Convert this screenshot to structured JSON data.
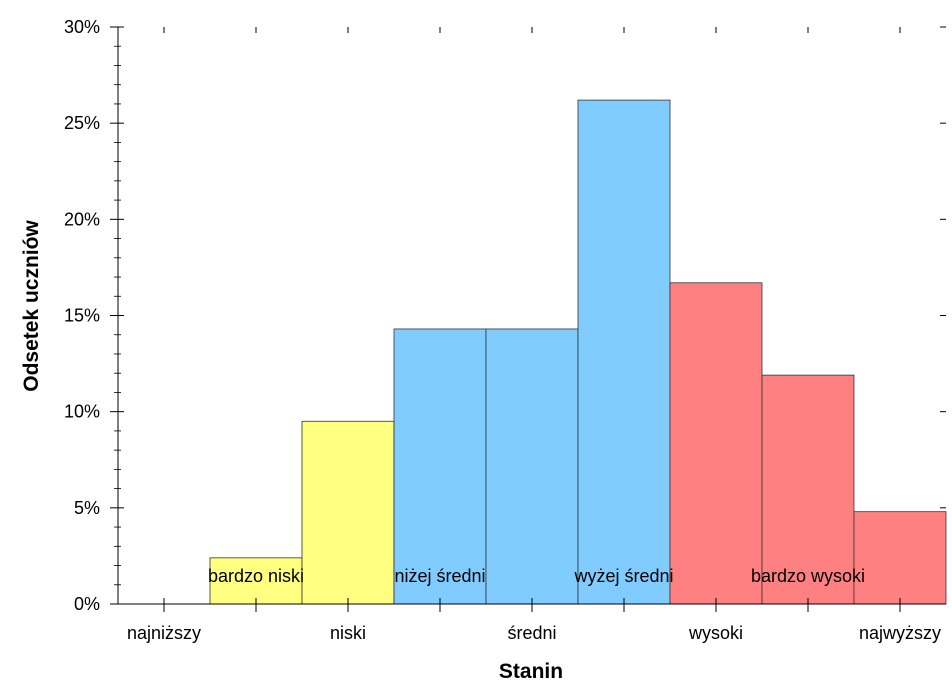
{
  "chart_data": {
    "type": "bar",
    "title": "",
    "xlabel": "Stanin",
    "ylabel": "Odsetek uczniów",
    "ylim": [
      0,
      30
    ],
    "y_ticks": [
      "0%",
      "5%",
      "10%",
      "15%",
      "20%",
      "25%",
      "30%"
    ],
    "categories": [
      "1",
      "2",
      "3",
      "4",
      "5",
      "6",
      "7",
      "8",
      "9"
    ],
    "values": [
      0,
      2.4,
      9.5,
      14.3,
      14.3,
      26.2,
      16.7,
      11.9,
      4.8
    ],
    "bar_colors": [
      "#FFFF80",
      "#FFFF80",
      "#FFFF80",
      "#80CBFF",
      "#80CBFF",
      "#80CBFF",
      "#FF8080",
      "#FF8080",
      "#FF8080"
    ],
    "x_tick_labels": [
      {
        "text": "najniższy",
        "position": 1
      },
      {
        "text": "niski",
        "position": 3
      },
      {
        "text": "średni",
        "position": 5
      },
      {
        "text": "wysoki",
        "position": 7
      },
      {
        "text": "najwyższy",
        "position": 9
      }
    ],
    "in_bar_labels": [
      {
        "text": "bardzo niski",
        "position": 2
      },
      {
        "text": "niżej średni",
        "position": 4
      },
      {
        "text": "wyżej średni",
        "position": 6
      },
      {
        "text": "bardzo wysoki",
        "position": 8
      }
    ],
    "grid": false,
    "legend": "none"
  }
}
